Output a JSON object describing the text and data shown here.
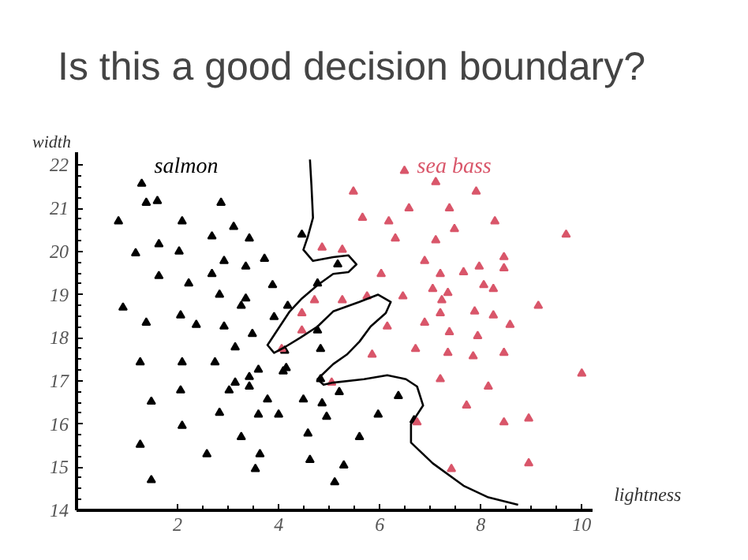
{
  "chart_data": {
    "type": "scatter",
    "title": "Is this a good decision boundary?",
    "xlabel": "lightness",
    "ylabel": "width",
    "xlim": [
      0,
      10.2
    ],
    "ylim": [
      14,
      22.3
    ],
    "xticks": [
      2,
      4,
      6,
      8,
      10
    ],
    "yticks": [
      14,
      15,
      16,
      17,
      18,
      19,
      20,
      21,
      22
    ],
    "grid": false,
    "legend": false,
    "marker": "triangle",
    "series": [
      {
        "name": "salmon",
        "color": "#000000",
        "x": [
          1.29,
          1.38,
          1.6,
          0.83,
          2.86,
          2.09,
          3.11,
          2.68,
          3.42,
          1.63,
          1.17,
          2.03,
          2.92,
          3.35,
          3.72,
          1.63,
          2.68,
          2.22,
          3.88,
          2.83,
          3.35,
          3.26,
          0.92,
          4.18,
          3.91,
          1.38,
          2.06,
          2.37,
          2.92,
          3.48,
          3.14,
          4.46,
          5.17,
          4.77,
          4.12,
          4.77,
          4.83,
          1.26,
          2.09,
          2.74,
          1.48,
          2.06,
          2.09,
          1.26,
          1.48,
          2.58,
          2.83,
          3.02,
          3.14,
          3.42,
          3.42,
          3.6,
          3.78,
          3.6,
          4.0,
          3.63,
          3.54,
          3.26,
          4.15,
          4.09,
          4.49,
          4.58,
          4.62,
          4.86,
          4.95,
          5.2,
          5.11,
          5.29,
          5.6,
          4.83,
          6.37,
          5.97,
          6.68
        ],
        "values": [
          21.57,
          21.13,
          21.17,
          20.7,
          21.13,
          20.7,
          20.57,
          20.35,
          20.3,
          20.17,
          19.96,
          20.0,
          19.78,
          19.65,
          19.83,
          19.43,
          19.48,
          19.26,
          19.22,
          19.0,
          18.91,
          18.74,
          18.7,
          18.74,
          18.48,
          18.35,
          18.52,
          18.3,
          18.26,
          18.09,
          17.78,
          20.39,
          19.7,
          19.26,
          17.7,
          18.17,
          17.74,
          17.43,
          17.43,
          17.43,
          16.52,
          16.78,
          15.96,
          15.52,
          14.7,
          15.3,
          16.26,
          16.78,
          16.96,
          16.87,
          17.09,
          17.26,
          16.57,
          16.22,
          16.22,
          15.3,
          14.96,
          15.7,
          17.3,
          17.22,
          16.57,
          15.78,
          15.17,
          16.48,
          16.17,
          16.74,
          14.65,
          15.04,
          15.7,
          17.04,
          16.65,
          16.22,
          16.09
        ]
      },
      {
        "name": "sea bass",
        "color": "#d9566a",
        "x": [
          6.49,
          7.11,
          7.91,
          5.48,
          6.58,
          7.38,
          5.66,
          6.18,
          8.28,
          7.48,
          9.69,
          6.31,
          7.11,
          4.86,
          5.26,
          6.89,
          8.46,
          7.97,
          8.46,
          7.66,
          6.03,
          7.2,
          8.06,
          8.25,
          7.05,
          7.35,
          7.23,
          6.46,
          5.75,
          5.26,
          4.71,
          9.14,
          7.88,
          8.25,
          7.2,
          6.89,
          6.15,
          8.58,
          7.38,
          7.94,
          6.71,
          4.46,
          4.06,
          4.46,
          5.85,
          7.35,
          7.85,
          8.46,
          5.05,
          7.2,
          8.15,
          10.0,
          7.72,
          8.46,
          8.95,
          6.74,
          7.42,
          8.95
        ],
        "values": [
          21.87,
          21.61,
          21.39,
          21.39,
          21.0,
          21.0,
          20.78,
          20.7,
          20.7,
          20.52,
          20.39,
          20.3,
          20.26,
          20.09,
          20.04,
          19.78,
          19.87,
          19.65,
          19.61,
          19.52,
          19.48,
          19.48,
          19.22,
          19.13,
          19.13,
          19.04,
          18.87,
          18.96,
          18.96,
          18.87,
          18.87,
          18.74,
          18.61,
          18.52,
          18.57,
          18.35,
          18.26,
          18.3,
          18.13,
          18.04,
          17.74,
          18.57,
          17.74,
          18.17,
          17.61,
          17.65,
          17.57,
          17.65,
          16.96,
          17.04,
          16.87,
          17.17,
          16.43,
          16.04,
          16.13,
          16.04,
          14.96,
          15.09
        ]
      },
      {
        "type": "line",
        "color": "#000000",
        "marker": "none",
        "x": [
          4.62,
          4.65,
          4.68,
          4.58,
          4.49,
          4.68,
          5.08,
          5.38,
          5.54,
          5.38,
          5.08,
          4.77,
          4.46,
          4.22,
          3.97,
          3.78,
          3.91,
          4.12,
          4.43,
          4.77,
          5.08,
          5.6,
          5.97,
          6.22,
          6.12,
          5.82,
          5.6,
          5.35,
          5.08,
          4.77,
          4.89,
          5.08,
          5.69,
          6.15,
          6.52,
          6.74,
          6.86,
          6.62,
          6.62,
          7.05,
          7.66,
          8.15,
          8.74
        ],
        "values": [
          22.13,
          21.52,
          20.78,
          20.35,
          20.04,
          19.78,
          19.87,
          19.91,
          19.7,
          19.52,
          19.48,
          19.22,
          18.91,
          18.61,
          18.17,
          17.83,
          17.65,
          17.78,
          18.0,
          18.26,
          18.61,
          18.83,
          19.0,
          18.83,
          18.57,
          18.26,
          17.91,
          17.61,
          17.39,
          17.04,
          16.91,
          16.96,
          17.04,
          17.13,
          17.04,
          16.87,
          16.43,
          16.0,
          15.57,
          15.09,
          14.57,
          14.3,
          14.13
        ]
      }
    ]
  }
}
